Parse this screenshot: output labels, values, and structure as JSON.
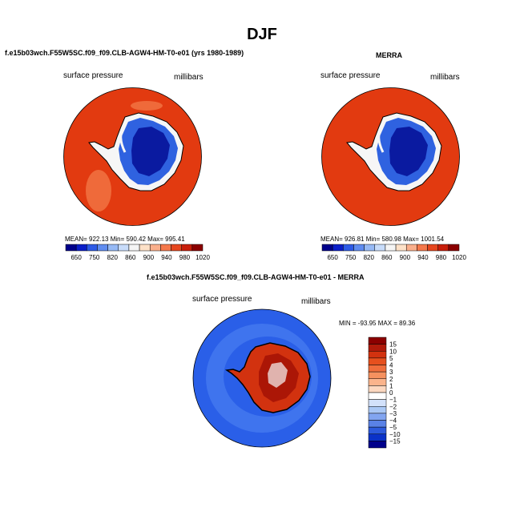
{
  "page": {
    "title": "DJF"
  },
  "panels": [
    {
      "title": "f.e15b03wch.F55W5SC.f09_f09.CLB-AGW4-HM-T0-e01 (yrs 1980-1989)",
      "field": "surface pressure",
      "units": "millibars",
      "stats": "MEAN= 922.13   Min= 590.42   Max= 995.41"
    },
    {
      "title": "MERRA",
      "field": "surface pressure",
      "units": "millibars",
      "stats": "MEAN= 926.81   Min= 580.98   Max= 1001.54"
    },
    {
      "title": "f.e15b03wch.F55W5SC.f09_f09.CLB-AGW4-HM-T0-e01 - MERRA",
      "field": "surface pressure",
      "units": "millibars",
      "stats": "MIN = -93.95 MAX =  89.36"
    }
  ],
  "colors": {
    "ocean_warm": "#e23a10",
    "ice_blue": "#2f62e0",
    "deep_blue": "#0a1aa0",
    "diff_ocean": "#2a5fe8"
  },
  "chart_data": [
    {
      "type": "heatmap",
      "title": "surface pressure",
      "projection": "south polar stereographic",
      "units": "millibars",
      "colorbar": {
        "labels": [
          "650",
          "750",
          "820",
          "860",
          "900",
          "940",
          "980",
          "1020"
        ],
        "colors": [
          "#00008b",
          "#0a1ec8",
          "#2d5ae6",
          "#5f8cf0",
          "#96b9f5",
          "#c8dcfa",
          "#f5f5f5",
          "#fde1c8",
          "#faaf8c",
          "#f5784b",
          "#e6461e",
          "#c81e0a",
          "#8b0000"
        ]
      },
      "mean": 922.13,
      "min": 590.42,
      "max": 995.41
    },
    {
      "type": "heatmap",
      "title": "surface pressure",
      "projection": "south polar stereographic",
      "units": "millibars",
      "colorbar": {
        "labels": [
          "650",
          "750",
          "820",
          "860",
          "900",
          "940",
          "980",
          "1020"
        ],
        "colors": [
          "#00008b",
          "#0a1ec8",
          "#2d5ae6",
          "#5f8cf0",
          "#96b9f5",
          "#c8dcfa",
          "#f5f5f5",
          "#fde1c8",
          "#faaf8c",
          "#f5784b",
          "#e6461e",
          "#c81e0a",
          "#8b0000"
        ]
      },
      "mean": 926.81,
      "min": 580.98,
      "max": 1001.54
    },
    {
      "type": "heatmap",
      "title": "surface pressure",
      "projection": "south polar stereographic",
      "units": "millibars",
      "colorbar": {
        "labels": [
          "15",
          "10",
          "5",
          "4",
          "3",
          "2",
          "1",
          "0",
          "-1",
          "-2",
          "-3",
          "-4",
          "-5",
          "-10",
          "-15"
        ],
        "colors": [
          "#8b0000",
          "#b01a0a",
          "#d2320f",
          "#e6501e",
          "#f06e3c",
          "#f5915f",
          "#fab48c",
          "#fcd8c0",
          "#ffffff",
          "#d2e1fa",
          "#aac8f5",
          "#82a5f0",
          "#5a82e6",
          "#2d5adc",
          "#0a32c8",
          "#00008b"
        ]
      },
      "min": -93.95,
      "max": 89.36
    }
  ]
}
